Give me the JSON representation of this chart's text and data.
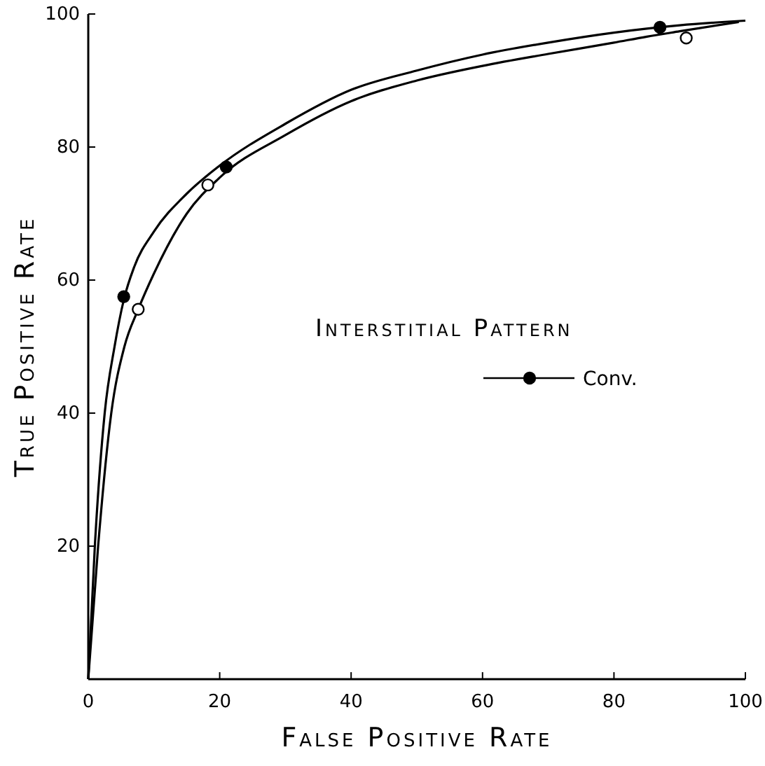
{
  "chart_data": {
    "type": "line",
    "xlabel": "False Positive Rate",
    "ylabel": "True Positive Rate",
    "legend_title": "Interstitial Pattern",
    "legend": "right",
    "grid": false,
    "xlim": [
      0,
      100
    ],
    "ylim": [
      0,
      100
    ],
    "xticks": [
      0,
      20,
      40,
      60,
      80,
      100
    ],
    "yticks": [
      20,
      40,
      60,
      80,
      100
    ],
    "series": [
      {
        "color": "#000000",
        "marker": "none",
        "x": [
          0,
          1,
          2.5,
          4,
          5.4,
          7,
          10,
          15,
          20,
          30,
          40,
          50,
          60,
          70,
          80,
          85,
          90,
          100
        ],
        "values": [
          0,
          20,
          40,
          50,
          57,
          62,
          67.3,
          73,
          77.2,
          83.5,
          88.6,
          91.5,
          93.9,
          95.7,
          97.2,
          97.8,
          98.3,
          99
        ]
      },
      {
        "color": "#000000",
        "marker": "none",
        "x": [
          0,
          1.5,
          3.5,
          5.5,
          7.6,
          10,
          15,
          20,
          30,
          40,
          50,
          60,
          70,
          80,
          85,
          90,
          99
        ],
        "values": [
          0,
          20,
          40,
          50,
          55.6,
          61,
          70,
          75.4,
          81.8,
          86.9,
          90,
          92.2,
          94,
          95.7,
          96.6,
          97.4,
          98.8
        ]
      },
      {
        "type": "scatter",
        "name": "Conv.",
        "color": "#000000",
        "marker": "circle",
        "x": [
          5.4,
          21,
          87
        ],
        "values": [
          57.5,
          77,
          98
        ]
      },
      {
        "type": "scatter",
        "color": "#ffffff",
        "marker": "circle",
        "x": [
          7.6,
          18.2,
          91
        ],
        "values": [
          55.6,
          74.3,
          96.4
        ]
      }
    ]
  }
}
